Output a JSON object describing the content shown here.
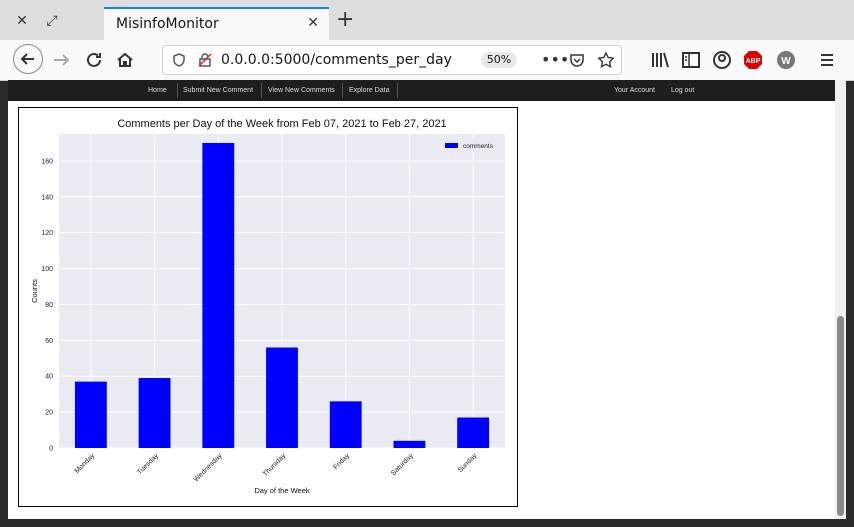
{
  "browser": {
    "tab_title": "MisinfoMonitor",
    "url": "0.0.0.0:5000/comments_per_day",
    "zoom": "50%"
  },
  "site_nav": {
    "left": [
      "Home",
      "Submit New Comment",
      "View New Comments",
      "Explore Data"
    ],
    "right": [
      "Your Account",
      "Log out"
    ]
  },
  "chart_data": {
    "type": "bar",
    "title": "Comments per Day of the Week from Feb 07, 2021 to Feb 27, 2021",
    "xlabel": "Day of the Week",
    "ylabel": "Counts",
    "categories": [
      "Monday",
      "Tuesday",
      "Wednesday",
      "Thursday",
      "Friday",
      "Saturday",
      "Sunday"
    ],
    "series": [
      {
        "name": "comments",
        "values": [
          37,
          39,
          170,
          56,
          26,
          4,
          17
        ]
      }
    ],
    "ylim": [
      0,
      175
    ],
    "yticks": [
      0,
      20,
      40,
      60,
      80,
      100,
      120,
      140,
      160
    ],
    "grid": true,
    "legend": "top-right",
    "bar_color": "#0000ff",
    "bg_color": "#eaeaf2"
  }
}
